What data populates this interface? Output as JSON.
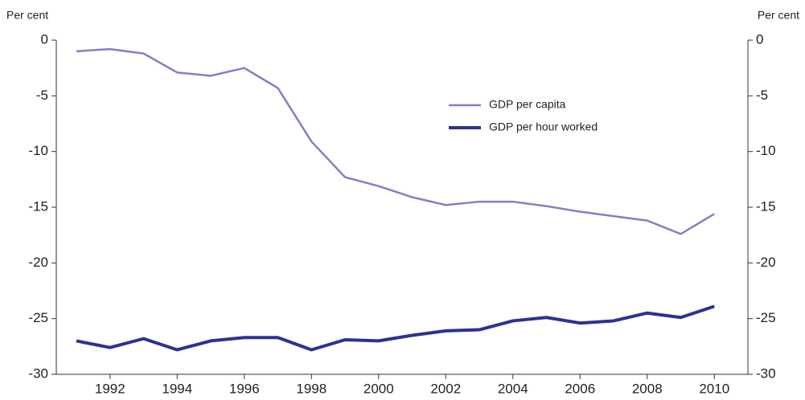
{
  "chart_data": {
    "type": "line",
    "y_label": "Per cent",
    "y2_label": "Per cent",
    "x": [
      1991,
      1992,
      1993,
      1994,
      1995,
      1996,
      1997,
      1998,
      1999,
      2000,
      2001,
      2002,
      2003,
      2004,
      2005,
      2006,
      2007,
      2008,
      2009,
      2010
    ],
    "series": [
      {
        "name": "GDP per capita",
        "color": "#8080c8",
        "values": [
          -1.0,
          -0.8,
          -1.2,
          -2.9,
          -3.2,
          -2.5,
          -4.3,
          -9.1,
          -12.3,
          -13.1,
          -14.1,
          -14.8,
          -14.5,
          -14.5,
          -14.9,
          -15.4,
          -15.8,
          -16.2,
          -17.4,
          -15.6
        ]
      },
      {
        "name": "GDP per hour worked",
        "color": "#2e3192",
        "values": [
          -27.0,
          -27.6,
          -26.8,
          -27.8,
          -27.0,
          -26.7,
          -26.7,
          -27.8,
          -26.9,
          -27.0,
          -26.5,
          -26.1,
          -26.0,
          -25.2,
          -24.9,
          -25.4,
          -25.2,
          -24.5,
          -24.9,
          -23.9
        ]
      }
    ],
    "xlim": [
      1990.4,
      2011
    ],
    "xticks": [
      1992,
      1994,
      1996,
      1998,
      2000,
      2002,
      2004,
      2006,
      2008,
      2010
    ],
    "ylim": [
      -30,
      0
    ],
    "yticks": [
      0,
      -5,
      -10,
      -15,
      -20,
      -25,
      -30
    ],
    "y2lim": [
      -30,
      0
    ],
    "y2ticks": [
      0,
      -5,
      -10,
      -15,
      -20,
      -25,
      -30
    ]
  }
}
